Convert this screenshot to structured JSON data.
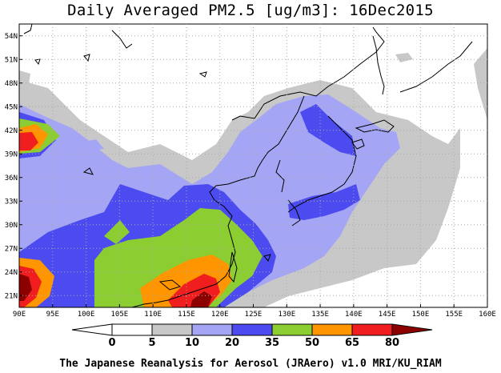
{
  "title": "Daily Averaged PM2.5 [ug/m3]: 16Dec2015",
  "credit": "The Japanese Reanalysis for Aerosol (JRAero) v1.0 MRI/KU_RIAM",
  "map": {
    "lon_range": [
      90,
      160
    ],
    "lat_range": [
      19.5,
      55.5
    ],
    "lon_ticks": [
      "90E",
      "95E",
      "100E",
      "105E",
      "110E",
      "115E",
      "120E",
      "125E",
      "130E",
      "135E",
      "140E",
      "145E",
      "150E",
      "155E",
      "160E"
    ],
    "lat_ticks": [
      "54N",
      "51N",
      "48N",
      "45N",
      "42N",
      "39N",
      "36N",
      "33N",
      "30N",
      "27N",
      "24N",
      "21N"
    ],
    "grid": "dotted"
  },
  "colorbar": {
    "labels": [
      "0",
      "5",
      "10",
      "20",
      "35",
      "50",
      "65",
      "80"
    ],
    "colors": [
      "#ffffff",
      "#ffffff",
      "#c8c8c8",
      "#a5a5f5",
      "#4b4bf0",
      "#8ccd32",
      "#ff9600",
      "#f01e1e",
      "#8c0000"
    ]
  }
}
